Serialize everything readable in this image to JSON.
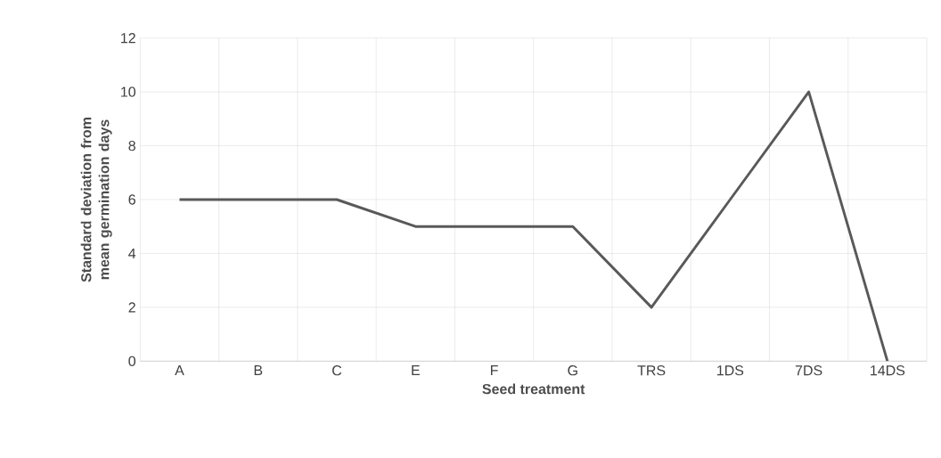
{
  "chart_data": {
    "type": "line",
    "xlabel": "Seed treatment",
    "ylabel": "Standard deviation from mean germination days",
    "categories": [
      "A",
      "B",
      "C",
      "E",
      "F",
      "G",
      "TRS",
      "1DS",
      "7DS",
      "14DS"
    ],
    "values": [
      6,
      6,
      6,
      5,
      5,
      5,
      2,
      6,
      10,
      0
    ],
    "color": "#595959",
    "ylim": [
      0,
      12
    ],
    "yticks": [
      0,
      2,
      4,
      6,
      8,
      10,
      12
    ],
    "grid": true,
    "marker": "none",
    "line_style": "solid"
  }
}
